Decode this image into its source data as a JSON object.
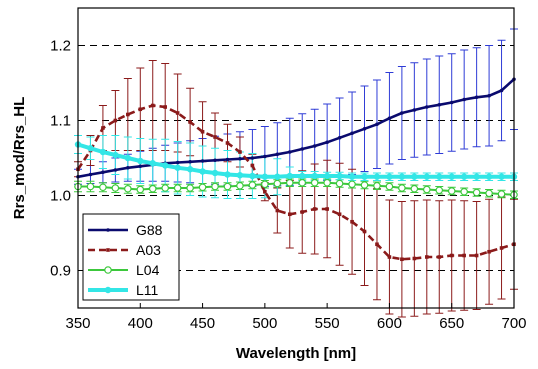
{
  "chart_data": {
    "type": "line",
    "xlabel": "Wavelength [nm]",
    "ylabel": "Rrs_mod/Rrs_HL",
    "xlim": [
      350,
      700
    ],
    "ylim": [
      0.85,
      1.25
    ],
    "xticks": [
      "350",
      "400",
      "450",
      "500",
      "550",
      "600",
      "650",
      "700"
    ],
    "xtick_values": [
      350,
      400,
      450,
      500,
      550,
      600,
      650,
      700
    ],
    "yticks": [
      "0.9",
      "1.0",
      "1.1",
      "1.2"
    ],
    "ytick_values": [
      0.9,
      1.0,
      1.1,
      1.2
    ],
    "grid": "dashed horizontal lines at y ticks",
    "legend_position": "bottom-left",
    "x": [
      350,
      360,
      370,
      380,
      390,
      400,
      410,
      420,
      430,
      440,
      450,
      460,
      470,
      480,
      490,
      500,
      510,
      520,
      530,
      540,
      550,
      560,
      570,
      580,
      590,
      600,
      610,
      620,
      630,
      640,
      650,
      660,
      670,
      680,
      690,
      700
    ],
    "series": [
      {
        "name": "G88",
        "color": "#0a0a6e",
        "error_color": "#2e3bd6",
        "marker": "dot",
        "dash": "solid",
        "values": [
          1.025,
          1.028,
          1.031,
          1.034,
          1.037,
          1.039,
          1.041,
          1.043,
          1.044,
          1.045,
          1.046,
          1.047,
          1.048,
          1.049,
          1.05,
          1.052,
          1.055,
          1.058,
          1.062,
          1.066,
          1.071,
          1.077,
          1.083,
          1.089,
          1.095,
          1.103,
          1.11,
          1.114,
          1.118,
          1.121,
          1.124,
          1.128,
          1.131,
          1.133,
          1.14,
          1.155
        ],
        "errors": [
          0.01,
          0.012,
          0.014,
          0.016,
          0.018,
          0.02,
          0.022,
          0.024,
          0.026,
          0.028,
          0.03,
          0.032,
          0.034,
          0.036,
          0.038,
          0.04,
          0.042,
          0.045,
          0.047,
          0.049,
          0.051,
          0.053,
          0.055,
          0.057,
          0.059,
          0.061,
          0.062,
          0.063,
          0.064,
          0.065,
          0.065,
          0.066,
          0.066,
          0.067,
          0.067,
          0.067
        ]
      },
      {
        "name": "A03",
        "color": "#8b1a1a",
        "error_color": "#8b1a1a",
        "marker": "square",
        "dash": "dashed",
        "values": [
          1.035,
          1.06,
          1.09,
          1.1,
          1.108,
          1.115,
          1.12,
          1.118,
          1.11,
          1.098,
          1.085,
          1.078,
          1.07,
          1.058,
          1.04,
          1.005,
          0.98,
          0.975,
          0.978,
          0.982,
          0.982,
          0.975,
          0.965,
          0.952,
          0.935,
          0.918,
          0.915,
          0.916,
          0.918,
          0.918,
          0.92,
          0.92,
          0.92,
          0.925,
          0.93,
          0.935
        ],
        "errors": [
          0.01,
          0.02,
          0.03,
          0.04,
          0.048,
          0.055,
          0.06,
          0.058,
          0.052,
          0.045,
          0.04,
          0.032,
          0.025,
          0.02,
          0.015,
          0.012,
          0.03,
          0.045,
          0.055,
          0.06,
          0.065,
          0.068,
          0.07,
          0.072,
          0.074,
          0.076,
          0.077,
          0.077,
          0.076,
          0.075,
          0.074,
          0.073,
          0.072,
          0.07,
          0.068,
          0.06
        ]
      },
      {
        "name": "L04",
        "color": "#3cc83c",
        "error_color": "#3cc83c",
        "marker": "circle-open",
        "dash": "solid",
        "values": [
          1.012,
          1.012,
          1.011,
          1.01,
          1.009,
          1.008,
          1.009,
          1.01,
          1.01,
          1.01,
          1.011,
          1.012,
          1.012,
          1.013,
          1.014,
          1.015,
          1.016,
          1.017,
          1.017,
          1.017,
          1.017,
          1.016,
          1.015,
          1.014,
          1.013,
          1.012,
          1.01,
          1.009,
          1.008,
          1.007,
          1.006,
          1.005,
          1.004,
          1.003,
          1.002,
          1.001
        ],
        "errors": [
          0.007,
          0.007,
          0.006,
          0.006,
          0.006,
          0.005,
          0.005,
          0.005,
          0.005,
          0.005,
          0.005,
          0.005,
          0.005,
          0.005,
          0.005,
          0.005,
          0.005,
          0.005,
          0.005,
          0.005,
          0.005,
          0.005,
          0.005,
          0.005,
          0.005,
          0.005,
          0.005,
          0.005,
          0.005,
          0.005,
          0.005,
          0.005,
          0.005,
          0.005,
          0.005,
          0.005
        ]
      },
      {
        "name": "L11",
        "color": "#33e6e6",
        "error_color": "#33e6e6",
        "marker": "dot-filled",
        "dash": "solid",
        "values": [
          1.068,
          1.063,
          1.058,
          1.054,
          1.05,
          1.046,
          1.043,
          1.04,
          1.037,
          1.035,
          1.032,
          1.03,
          1.028,
          1.027,
          1.026,
          1.025,
          1.025,
          1.026,
          1.026,
          1.026,
          1.026,
          1.026,
          1.025,
          1.025,
          1.025,
          1.025,
          1.025,
          1.025,
          1.025,
          1.025,
          1.025,
          1.025,
          1.025,
          1.025,
          1.025,
          1.025
        ],
        "errors": [
          0.012,
          0.015,
          0.022,
          0.026,
          0.028,
          0.03,
          0.032,
          0.035,
          0.035,
          0.035,
          0.034,
          0.033,
          0.032,
          0.031,
          0.03,
          0.028,
          0.024,
          0.012,
          0.006,
          0.006,
          0.005,
          0.005,
          0.005,
          0.005,
          0.005,
          0.005,
          0.005,
          0.005,
          0.005,
          0.005,
          0.005,
          0.005,
          0.005,
          0.005,
          0.005,
          0.005
        ]
      }
    ]
  }
}
